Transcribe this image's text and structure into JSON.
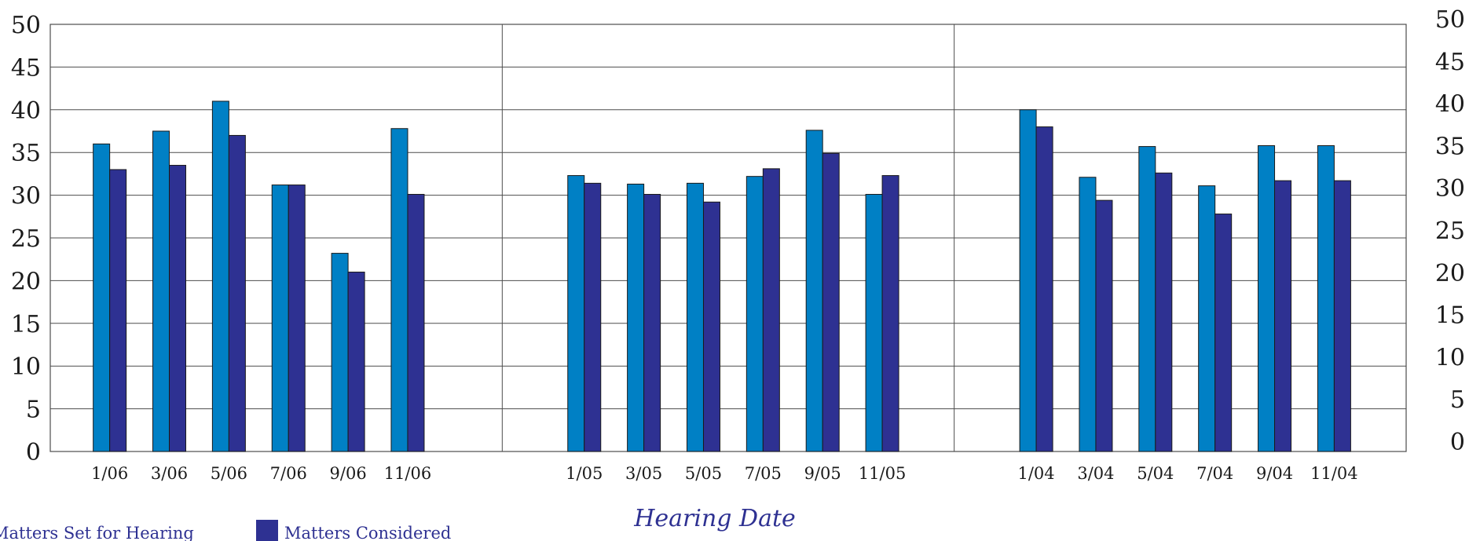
{
  "chart_data": {
    "type": "bar",
    "title": "",
    "xlabel": "Hearing Date",
    "ylabel": "",
    "ylim": [
      0,
      50
    ],
    "yticks": [
      0,
      5,
      10,
      15,
      20,
      25,
      30,
      35,
      40,
      45,
      50
    ],
    "grid": true,
    "legend_position": "bottom-left",
    "groups": [
      {
        "categories": [
          "1/06",
          "3/06",
          "5/06",
          "7/06",
          "9/06",
          "11/06"
        ],
        "series": [
          {
            "name": "Matters Set for Hearing",
            "color": "#0080c5",
            "values": [
              36,
              37.5,
              41,
              31.2,
              23.2,
              37.8
            ]
          },
          {
            "name": "Matters Considered",
            "color": "#2e3192",
            "values": [
              33,
              33.5,
              37,
              31.2,
              21,
              30.1
            ]
          }
        ]
      },
      {
        "categories": [
          "1/05",
          "3/05",
          "5/05",
          "7/05",
          "9/05",
          "11/05"
        ],
        "series": [
          {
            "name": "Matters Set for Hearing",
            "color": "#0080c5",
            "values": [
              32.3,
              31.3,
              31.4,
              32.2,
              37.6,
              30.1
            ]
          },
          {
            "name": "Matters Considered",
            "color": "#2e3192",
            "values": [
              31.4,
              30.1,
              29.2,
              33.1,
              34.9,
              32.3
            ]
          }
        ]
      },
      {
        "categories": [
          "1/04",
          "3/04",
          "5/04",
          "7/04",
          "9/04",
          "11/04"
        ],
        "series": [
          {
            "name": "Matters Set for Hearing",
            "color": "#0080c5",
            "values": [
              40,
              32.1,
              35.7,
              31.1,
              35.8,
              35.8
            ]
          },
          {
            "name": "Matters Considered",
            "color": "#2e3192",
            "values": [
              38,
              29.4,
              32.6,
              27.8,
              31.7,
              31.7
            ]
          }
        ]
      }
    ],
    "legend": [
      {
        "label": "Matters Set for Hearing",
        "color": "#0080c5"
      },
      {
        "label": "Matters Considered",
        "color": "#2e3192"
      }
    ]
  }
}
